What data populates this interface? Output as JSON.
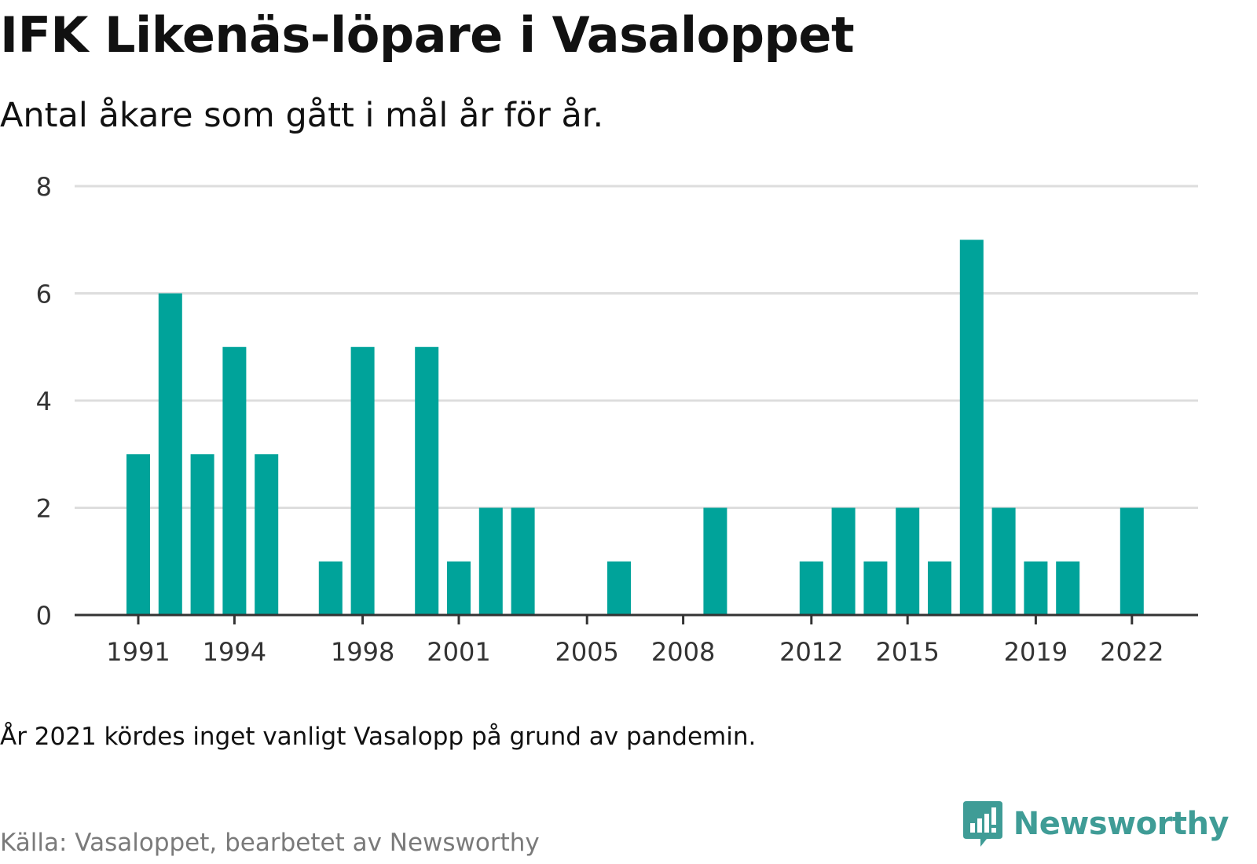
{
  "header": {
    "title": "IFK Likenäs-löpare i Vasaloppet",
    "subtitle": "Antal åkare som gått i mål år för år."
  },
  "footer": {
    "note": "År 2021 kördes inget vanligt Vasalopp på grund av pandemin.",
    "source": "Källa: Vasaloppet, bearbetet av Newsworthy",
    "logo_text": "Newsworthy"
  },
  "colors": {
    "bar": "#00a39a",
    "grid": "#dddddd",
    "axis": "#333333",
    "tick_text": "#333333",
    "brand": "#3f9c96"
  },
  "chart_data": {
    "type": "bar",
    "categories": [
      1991,
      1992,
      1993,
      1994,
      1995,
      1996,
      1997,
      1998,
      1999,
      2000,
      2001,
      2002,
      2003,
      2004,
      2005,
      2006,
      2007,
      2008,
      2009,
      2010,
      2011,
      2012,
      2013,
      2014,
      2015,
      2016,
      2017,
      2018,
      2019,
      2020,
      2021,
      2022
    ],
    "values": [
      3,
      6,
      3,
      5,
      3,
      0,
      1,
      5,
      0,
      5,
      1,
      2,
      2,
      0,
      0,
      1,
      0,
      0,
      2,
      0,
      0,
      1,
      2,
      1,
      2,
      1,
      7,
      2,
      1,
      1,
      0,
      2
    ],
    "x_tick_labels": [
      "1991",
      "1994",
      "1998",
      "2001",
      "2005",
      "2008",
      "2012",
      "2015",
      "2019",
      "2022"
    ],
    "y_ticks": [
      0,
      2,
      4,
      6,
      8
    ],
    "ylim": [
      0,
      8
    ],
    "grid": true,
    "legend": "none"
  }
}
